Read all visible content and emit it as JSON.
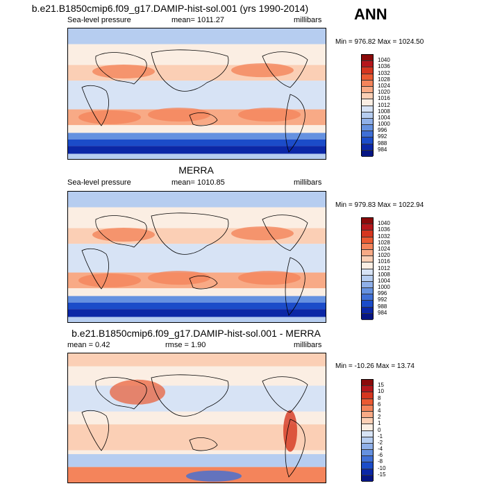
{
  "season": "ANN",
  "chart_data": [
    {
      "type": "heatmap",
      "title": "b.e21.B1850cmip6.f09_g17.DAMIP-hist-sol.001 (yrs 1990-2014)",
      "left_label": "Sea-level pressure",
      "center_label": "mean= 1011.27",
      "right_label": "millibars",
      "minmax": "Min = 976.82 Max = 1024.50",
      "colorbar_levels": [
        "1040",
        "1036",
        "1032",
        "1028",
        "1024",
        "1020",
        "1016",
        "1012",
        "1008",
        "1004",
        "1000",
        "996",
        "992",
        "988",
        "984"
      ],
      "colorbar_colors": [
        "#8a0a0a",
        "#b5161b",
        "#d5361f",
        "#ea5a32",
        "#f4845b",
        "#f8aa86",
        "#fbcfb5",
        "#fbeee3",
        "#d7e3f5",
        "#b6cdf0",
        "#8fb0e9",
        "#6591e0",
        "#3f6fd6",
        "#1b4cc9",
        "#0b27a6",
        "#061583"
      ],
      "range": [
        976.82,
        1024.5
      ]
    },
    {
      "type": "heatmap",
      "title": "MERRA",
      "left_label": "Sea-level pressure",
      "center_label": "mean= 1010.85",
      "right_label": "millibars",
      "minmax": "Min = 979.83 Max = 1022.94",
      "colorbar_levels": [
        "1040",
        "1036",
        "1032",
        "1028",
        "1024",
        "1020",
        "1016",
        "1012",
        "1008",
        "1004",
        "1000",
        "996",
        "992",
        "988",
        "984"
      ],
      "colorbar_colors": [
        "#8a0a0a",
        "#b5161b",
        "#d5361f",
        "#ea5a32",
        "#f4845b",
        "#f8aa86",
        "#fbcfb5",
        "#fbeee3",
        "#d7e3f5",
        "#b6cdf0",
        "#8fb0e9",
        "#6591e0",
        "#3f6fd6",
        "#1b4cc9",
        "#0b27a6",
        "#061583"
      ],
      "range": [
        979.83,
        1022.94
      ]
    },
    {
      "type": "heatmap",
      "title": "b.e21.B1850cmip6.f09_g17.DAMIP-hist-sol.001 - MERRA",
      "left_label": "mean =   0.42",
      "center_label": "rmse =   1.90",
      "right_label": "millibars",
      "minmax": "Min = -10.26 Max =  13.74",
      "colorbar_levels": [
        "15",
        "10",
        "8",
        "6",
        "4",
        "2",
        "1",
        "0",
        "-1",
        "-2",
        "-4",
        "-6",
        "-8",
        "-10",
        "-15"
      ],
      "colorbar_colors": [
        "#8a0a0a",
        "#b5161b",
        "#d5361f",
        "#ea5a32",
        "#f4845b",
        "#f8aa86",
        "#fbcfb5",
        "#fbeee3",
        "#d7e3f5",
        "#b6cdf0",
        "#8fb0e9",
        "#6591e0",
        "#3f6fd6",
        "#1b4cc9",
        "#0b27a6",
        "#061583"
      ],
      "range": [
        -10.26,
        13.74
      ]
    }
  ]
}
